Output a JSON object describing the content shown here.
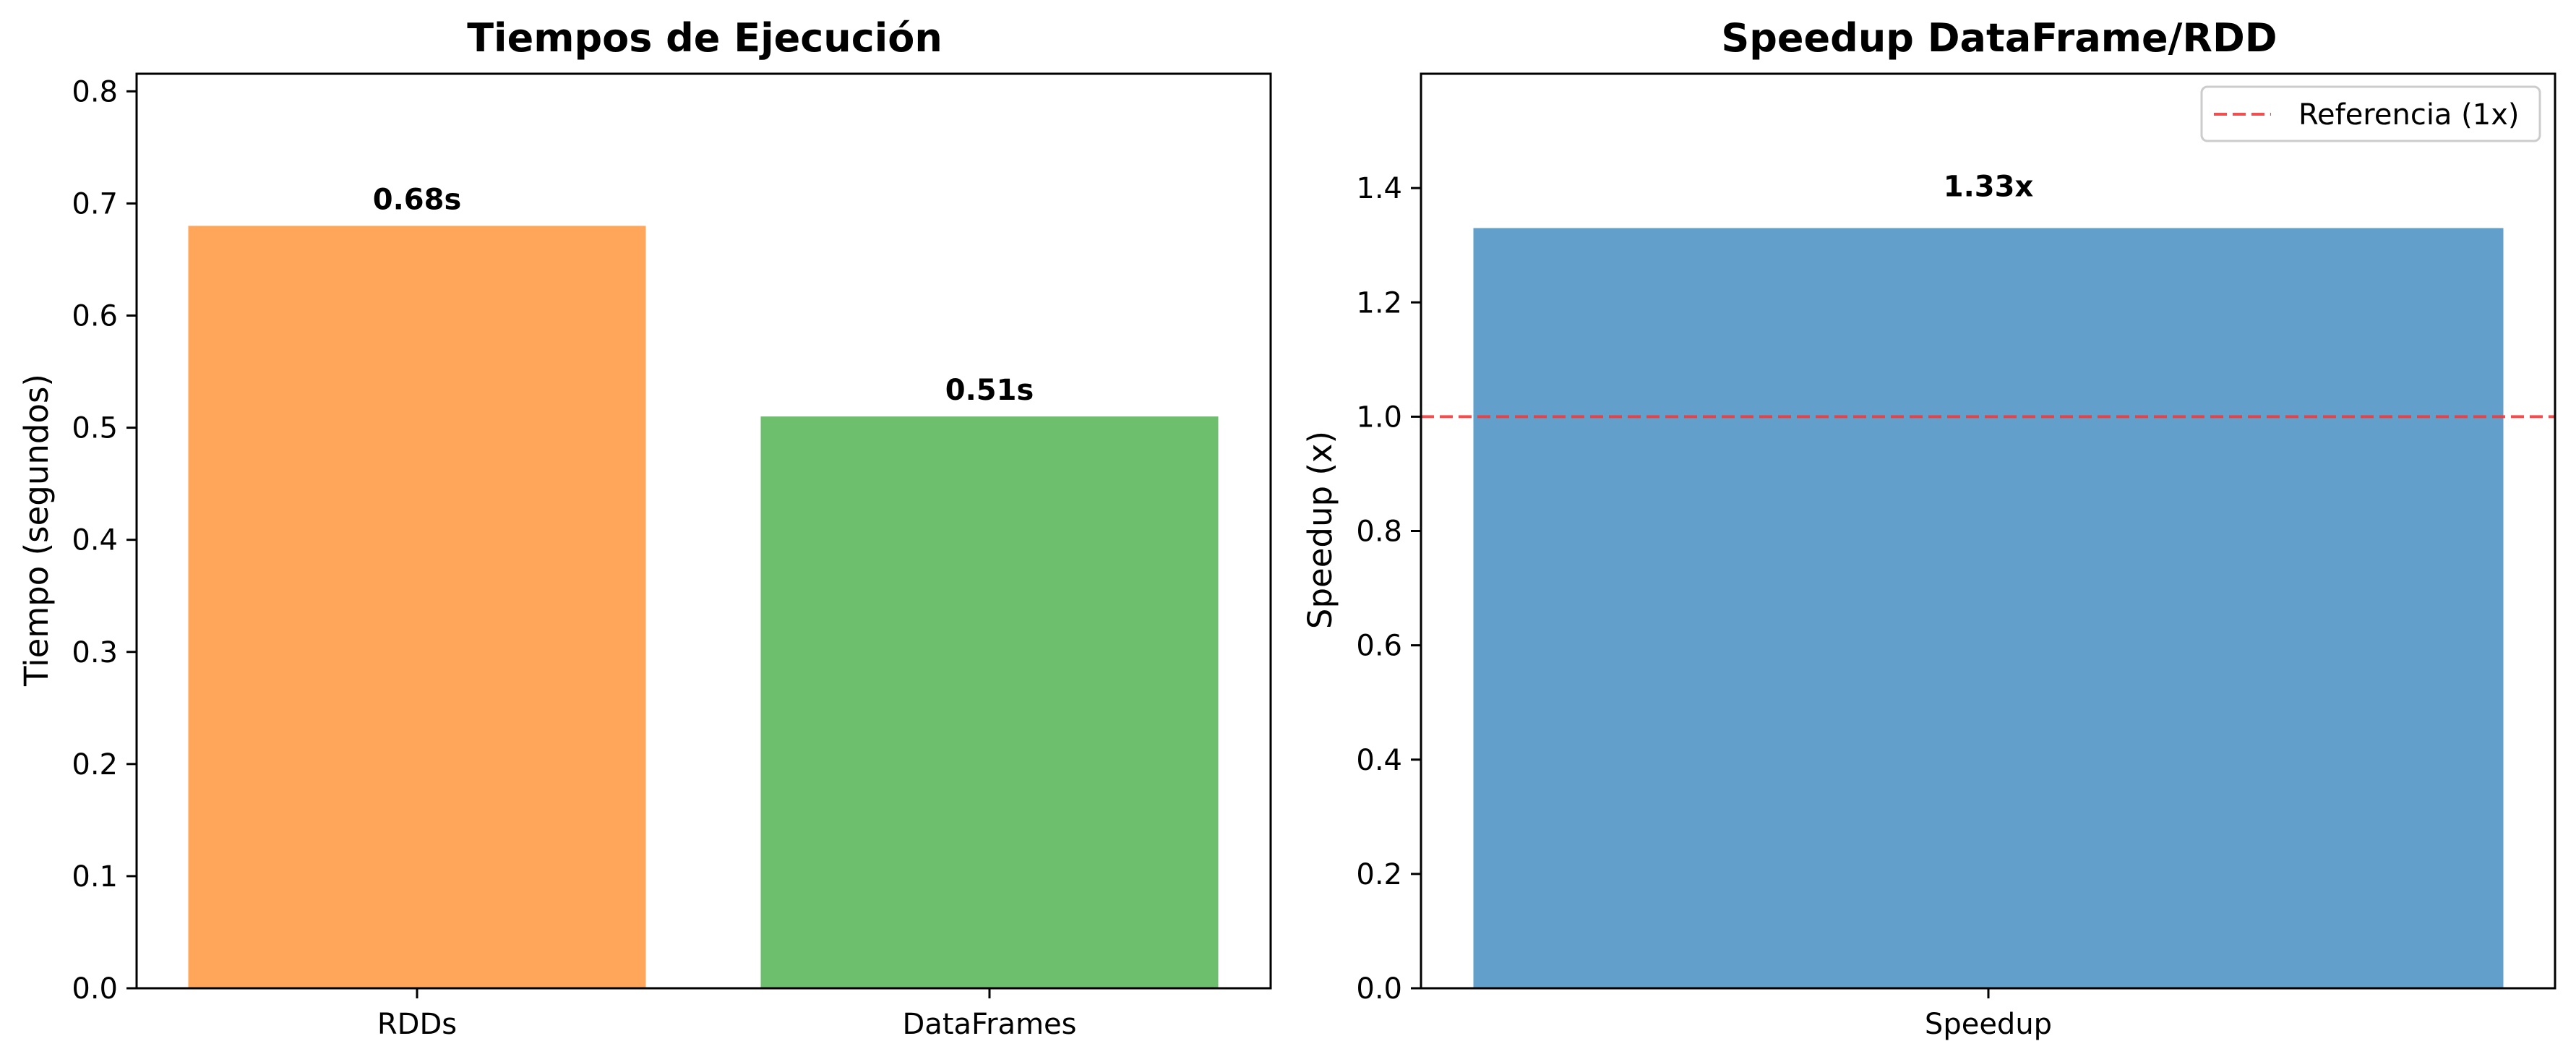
{
  "chart_data": [
    {
      "type": "bar",
      "title": "Tiempos de Ejecución",
      "xlabel": "",
      "ylabel": "Tiempo (segundos)",
      "categories": [
        "RDDs",
        "DataFrames"
      ],
      "values": [
        0.68,
        0.51
      ],
      "value_labels": [
        "0.68s",
        "0.51s"
      ],
      "colors": [
        "#ffa65a",
        "#6dbe6d"
      ],
      "ylim": [
        0,
        0.8157
      ],
      "yticks": [
        "0.0",
        "0.1",
        "0.2",
        "0.3",
        "0.4",
        "0.5",
        "0.6",
        "0.7",
        "0.8"
      ],
      "grid": false,
      "legend": null
    },
    {
      "type": "bar",
      "title": "Speedup DataFrame/RDD",
      "xlabel": "",
      "ylabel": "Speedup (x)",
      "categories": [
        "Speedup"
      ],
      "values": [
        1.33
      ],
      "value_labels": [
        "1.33x"
      ],
      "colors": [
        "#629fca"
      ],
      "ylim": [
        0,
        1.6
      ],
      "yticks": [
        "0.0",
        "0.2",
        "0.4",
        "0.6",
        "0.8",
        "1.0",
        "1.2",
        "1.4"
      ],
      "reference_line": {
        "value": 1.0,
        "color": "#f03c3c",
        "style": "dashed",
        "label": "Referencia (1x)"
      },
      "grid": false,
      "legend": {
        "position": "top-right",
        "entries": [
          "Referencia (1x)"
        ]
      }
    }
  ]
}
